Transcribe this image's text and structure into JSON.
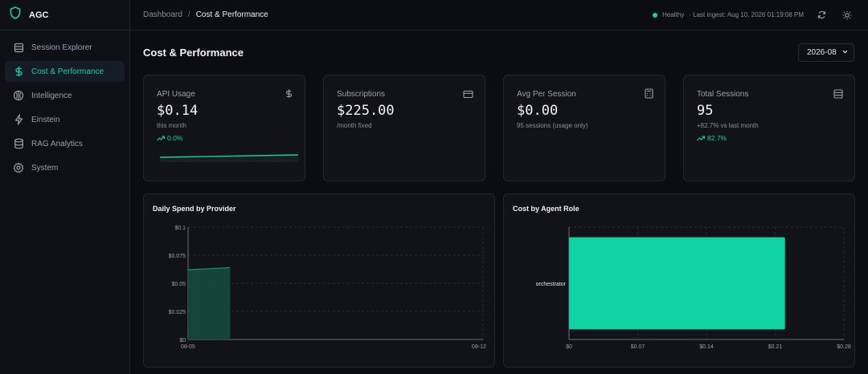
{
  "sidebar": {
    "brand": "AGC",
    "items": [
      {
        "label": "Session Explorer"
      },
      {
        "label": "Cost & Performance"
      },
      {
        "label": "Intelligence"
      },
      {
        "label": "Einstein"
      },
      {
        "label": "RAG Analytics"
      },
      {
        "label": "System"
      }
    ]
  },
  "topbar": {
    "breadcrumb_root": "Dashboard",
    "breadcrumb_sep": "/",
    "breadcrumb_current": "Cost & Performance",
    "status": "Healthy",
    "last_ingest": "· Last ingest: Aug 10, 2026 01:19:08 PM"
  },
  "page": {
    "title": "Cost & Performance",
    "month": "2026-08"
  },
  "stats": [
    {
      "label": "API Usage",
      "value": "$0.14",
      "sub": "this month",
      "trend": "0.0%",
      "icon": "dollar-icon"
    },
    {
      "label": "Subscriptions",
      "value": "$225.00",
      "sub": "/month fixed",
      "icon": "credit-card-icon"
    },
    {
      "label": "Avg Per Session",
      "value": "$0.00",
      "sub": "95 sessions (usage only)",
      "icon": "calculator-icon"
    },
    {
      "label": "Total Sessions",
      "value": "95",
      "sub": "+82.7% vs last month",
      "trend": "82.7%",
      "icon": "database-icon"
    }
  ],
  "colors": {
    "accent": "#10d3a4",
    "area_fill": "#17493e"
  },
  "chart_data": [
    {
      "type": "area",
      "title": "Daily Spend by Provider",
      "x": [
        "08-05",
        "08-06"
      ],
      "series": [
        {
          "values": [
            0.062,
            0.064
          ]
        }
      ],
      "x_tick_labels": [
        "08-05",
        "08-12"
      ],
      "y_tick_labels": [
        "$0",
        "$0.025",
        "$0.05",
        "$0.075",
        "$0.1"
      ],
      "ylim": [
        0,
        0.1
      ],
      "grid": true
    },
    {
      "type": "bar",
      "orientation": "horizontal",
      "title": "Cost by Agent Role",
      "categories": [
        "orchestrator"
      ],
      "values": [
        0.22
      ],
      "x_tick_labels": [
        "$0",
        "$0.07",
        "$0.14",
        "$0.21",
        "$0.28"
      ],
      "xlim": [
        0,
        0.28
      ],
      "grid": true
    }
  ]
}
